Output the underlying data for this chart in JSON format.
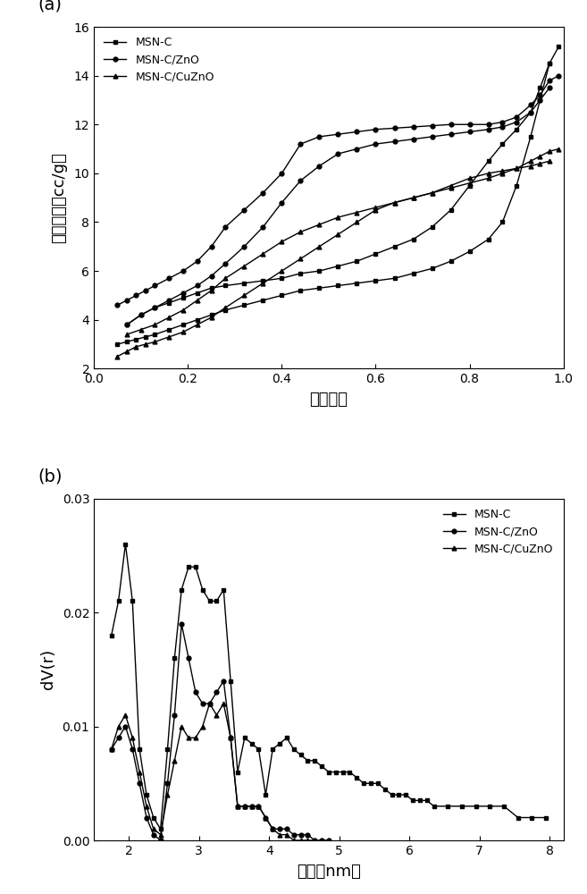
{
  "panel_a": {
    "title_label": "(a)",
    "xlabel": "相对压力",
    "ylabel": "吸附体积（cc/g）",
    "xlim": [
      0.0,
      1.0
    ],
    "ylim": [
      2,
      16
    ],
    "yticks": [
      2,
      4,
      6,
      8,
      10,
      12,
      14,
      16
    ],
    "xticks": [
      0.0,
      0.2,
      0.4,
      0.6,
      0.8,
      1.0
    ],
    "MSN_C_ads_x": [
      0.05,
      0.07,
      0.09,
      0.11,
      0.13,
      0.16,
      0.19,
      0.22,
      0.25,
      0.28,
      0.32,
      0.36,
      0.4,
      0.44,
      0.48,
      0.52,
      0.56,
      0.6,
      0.64,
      0.68,
      0.72,
      0.76,
      0.8,
      0.84,
      0.87,
      0.9,
      0.93,
      0.95,
      0.97,
      0.99
    ],
    "MSN_C_ads_y": [
      3.0,
      3.1,
      3.2,
      3.3,
      3.4,
      3.6,
      3.8,
      4.0,
      4.2,
      4.4,
      4.6,
      4.8,
      5.0,
      5.2,
      5.3,
      5.4,
      5.5,
      5.6,
      5.7,
      5.9,
      6.1,
      6.4,
      6.8,
      7.3,
      8.0,
      9.5,
      11.5,
      13.0,
      14.5,
      15.2
    ],
    "MSN_C_des_x": [
      0.97,
      0.95,
      0.93,
      0.9,
      0.87,
      0.84,
      0.8,
      0.76,
      0.72,
      0.68,
      0.64,
      0.6,
      0.56,
      0.52,
      0.48,
      0.44,
      0.4,
      0.36,
      0.32,
      0.28,
      0.25,
      0.22,
      0.19,
      0.16,
      0.13,
      0.1,
      0.07
    ],
    "MSN_C_des_y": [
      14.5,
      13.5,
      12.5,
      11.8,
      11.2,
      10.5,
      9.5,
      8.5,
      7.8,
      7.3,
      7.0,
      6.7,
      6.4,
      6.2,
      6.0,
      5.9,
      5.7,
      5.6,
      5.5,
      5.4,
      5.3,
      5.1,
      4.9,
      4.7,
      4.5,
      4.2,
      3.8
    ],
    "MSN_C_ZnO_ads_x": [
      0.05,
      0.07,
      0.09,
      0.11,
      0.13,
      0.16,
      0.19,
      0.22,
      0.25,
      0.28,
      0.32,
      0.36,
      0.4,
      0.44,
      0.48,
      0.52,
      0.56,
      0.6,
      0.64,
      0.68,
      0.72,
      0.76,
      0.8,
      0.84,
      0.87,
      0.9,
      0.93,
      0.95,
      0.97,
      0.99
    ],
    "MSN_C_ZnO_ads_y": [
      4.6,
      4.8,
      5.0,
      5.2,
      5.4,
      5.7,
      6.0,
      6.4,
      7.0,
      7.8,
      8.5,
      9.2,
      10.0,
      11.2,
      11.5,
      11.6,
      11.7,
      11.8,
      11.85,
      11.9,
      11.95,
      12.0,
      12.0,
      12.0,
      12.1,
      12.3,
      12.8,
      13.2,
      13.8,
      14.0
    ],
    "MSN_C_ZnO_des_x": [
      0.97,
      0.95,
      0.93,
      0.9,
      0.87,
      0.84,
      0.8,
      0.76,
      0.72,
      0.68,
      0.64,
      0.6,
      0.56,
      0.52,
      0.48,
      0.44,
      0.4,
      0.36,
      0.32,
      0.28,
      0.25,
      0.22,
      0.19,
      0.16,
      0.13,
      0.1,
      0.07
    ],
    "MSN_C_ZnO_des_y": [
      13.5,
      13.0,
      12.5,
      12.1,
      11.9,
      11.8,
      11.7,
      11.6,
      11.5,
      11.4,
      11.3,
      11.2,
      11.0,
      10.8,
      10.3,
      9.7,
      8.8,
      7.8,
      7.0,
      6.3,
      5.8,
      5.4,
      5.1,
      4.8,
      4.5,
      4.2,
      3.8
    ],
    "MSN_C_CuZnO_ads_x": [
      0.05,
      0.07,
      0.09,
      0.11,
      0.13,
      0.16,
      0.19,
      0.22,
      0.25,
      0.28,
      0.32,
      0.36,
      0.4,
      0.44,
      0.48,
      0.52,
      0.56,
      0.6,
      0.64,
      0.68,
      0.72,
      0.76,
      0.8,
      0.84,
      0.87,
      0.9,
      0.93,
      0.95,
      0.97,
      0.99
    ],
    "MSN_C_CuZnO_ads_y": [
      2.5,
      2.7,
      2.9,
      3.0,
      3.1,
      3.3,
      3.5,
      3.8,
      4.1,
      4.5,
      5.0,
      5.5,
      6.0,
      6.5,
      7.0,
      7.5,
      8.0,
      8.5,
      8.8,
      9.0,
      9.2,
      9.4,
      9.6,
      9.8,
      10.0,
      10.2,
      10.5,
      10.7,
      10.9,
      11.0
    ],
    "MSN_C_CuZnO_des_x": [
      0.97,
      0.95,
      0.93,
      0.9,
      0.87,
      0.84,
      0.8,
      0.76,
      0.72,
      0.68,
      0.64,
      0.6,
      0.56,
      0.52,
      0.48,
      0.44,
      0.4,
      0.36,
      0.32,
      0.28,
      0.25,
      0.22,
      0.19,
      0.16,
      0.13,
      0.1,
      0.07
    ],
    "MSN_C_CuZnO_des_y": [
      10.5,
      10.4,
      10.3,
      10.2,
      10.1,
      10.0,
      9.8,
      9.5,
      9.2,
      9.0,
      8.8,
      8.6,
      8.4,
      8.2,
      7.9,
      7.6,
      7.2,
      6.7,
      6.2,
      5.7,
      5.2,
      4.8,
      4.4,
      4.1,
      3.8,
      3.6,
      3.4
    ]
  },
  "panel_b": {
    "title_label": "(b)",
    "xlabel": "孔径（nm）",
    "ylabel": "dV(r)",
    "xlim": [
      1.5,
      8.2
    ],
    "ylim": [
      0.0,
      0.03
    ],
    "yticks": [
      0.0,
      0.01,
      0.02,
      0.03
    ],
    "xticks": [
      2,
      3,
      4,
      5,
      6,
      7,
      8
    ],
    "MSN_C_x": [
      1.75,
      1.85,
      1.95,
      2.05,
      2.15,
      2.25,
      2.35,
      2.45,
      2.55,
      2.65,
      2.75,
      2.85,
      2.95,
      3.05,
      3.15,
      3.25,
      3.35,
      3.45,
      3.55,
      3.65,
      3.75,
      3.85,
      3.95,
      4.05,
      4.15,
      4.25,
      4.35,
      4.45,
      4.55,
      4.65,
      4.75,
      4.85,
      4.95,
      5.05,
      5.15,
      5.25,
      5.35,
      5.45,
      5.55,
      5.65,
      5.75,
      5.85,
      5.95,
      6.05,
      6.15,
      6.25,
      6.35,
      6.55,
      6.75,
      6.95,
      7.15,
      7.35,
      7.55,
      7.75,
      7.95
    ],
    "MSN_C_y": [
      0.018,
      0.021,
      0.026,
      0.021,
      0.008,
      0.004,
      0.002,
      0.001,
      0.008,
      0.016,
      0.022,
      0.024,
      0.024,
      0.022,
      0.021,
      0.021,
      0.022,
      0.014,
      0.006,
      0.009,
      0.0085,
      0.008,
      0.004,
      0.008,
      0.0085,
      0.009,
      0.008,
      0.0075,
      0.007,
      0.007,
      0.0065,
      0.006,
      0.006,
      0.006,
      0.006,
      0.0055,
      0.005,
      0.005,
      0.005,
      0.0045,
      0.004,
      0.004,
      0.004,
      0.0035,
      0.0035,
      0.0035,
      0.003,
      0.003,
      0.003,
      0.003,
      0.003,
      0.003,
      0.002,
      0.002,
      0.002
    ],
    "MSN_C_ZnO_x": [
      1.75,
      1.85,
      1.95,
      2.05,
      2.15,
      2.25,
      2.35,
      2.45,
      2.55,
      2.65,
      2.75,
      2.85,
      2.95,
      3.05,
      3.15,
      3.25,
      3.35,
      3.45,
      3.55,
      3.65,
      3.75,
      3.85,
      3.95,
      4.05,
      4.15,
      4.25,
      4.35,
      4.45,
      4.55,
      4.65,
      4.75,
      4.85
    ],
    "MSN_C_ZnO_y": [
      0.008,
      0.009,
      0.01,
      0.008,
      0.005,
      0.002,
      0.0005,
      0.0,
      0.005,
      0.011,
      0.019,
      0.016,
      0.013,
      0.012,
      0.012,
      0.013,
      0.014,
      0.009,
      0.003,
      0.003,
      0.003,
      0.003,
      0.002,
      0.001,
      0.001,
      0.001,
      0.0005,
      0.0005,
      0.0005,
      0.0,
      0.0,
      0.0
    ],
    "MSN_C_CuZnO_x": [
      1.75,
      1.85,
      1.95,
      2.05,
      2.15,
      2.25,
      2.35,
      2.45,
      2.55,
      2.65,
      2.75,
      2.85,
      2.95,
      3.05,
      3.15,
      3.25,
      3.35,
      3.45,
      3.55,
      3.65,
      3.75,
      3.85,
      3.95,
      4.05,
      4.15,
      4.25,
      4.35,
      4.45,
      4.55,
      4.65,
      4.75,
      4.85
    ],
    "MSN_C_CuZnO_y": [
      0.008,
      0.01,
      0.011,
      0.009,
      0.006,
      0.003,
      0.001,
      0.0005,
      0.004,
      0.007,
      0.01,
      0.009,
      0.009,
      0.01,
      0.012,
      0.011,
      0.012,
      0.009,
      0.003,
      0.003,
      0.003,
      0.003,
      0.002,
      0.001,
      0.0005,
      0.0005,
      0.0,
      0.0,
      0.0,
      0.0,
      0.0,
      0.0
    ]
  },
  "line_color": "#000000",
  "marker_square": "s",
  "marker_circle": "o",
  "marker_triangle": "^",
  "marker_size": 3.5,
  "linewidth": 1.0,
  "legend_fontsize": 9,
  "axis_fontsize": 13,
  "tick_fontsize": 10,
  "label_fontsize": 14
}
